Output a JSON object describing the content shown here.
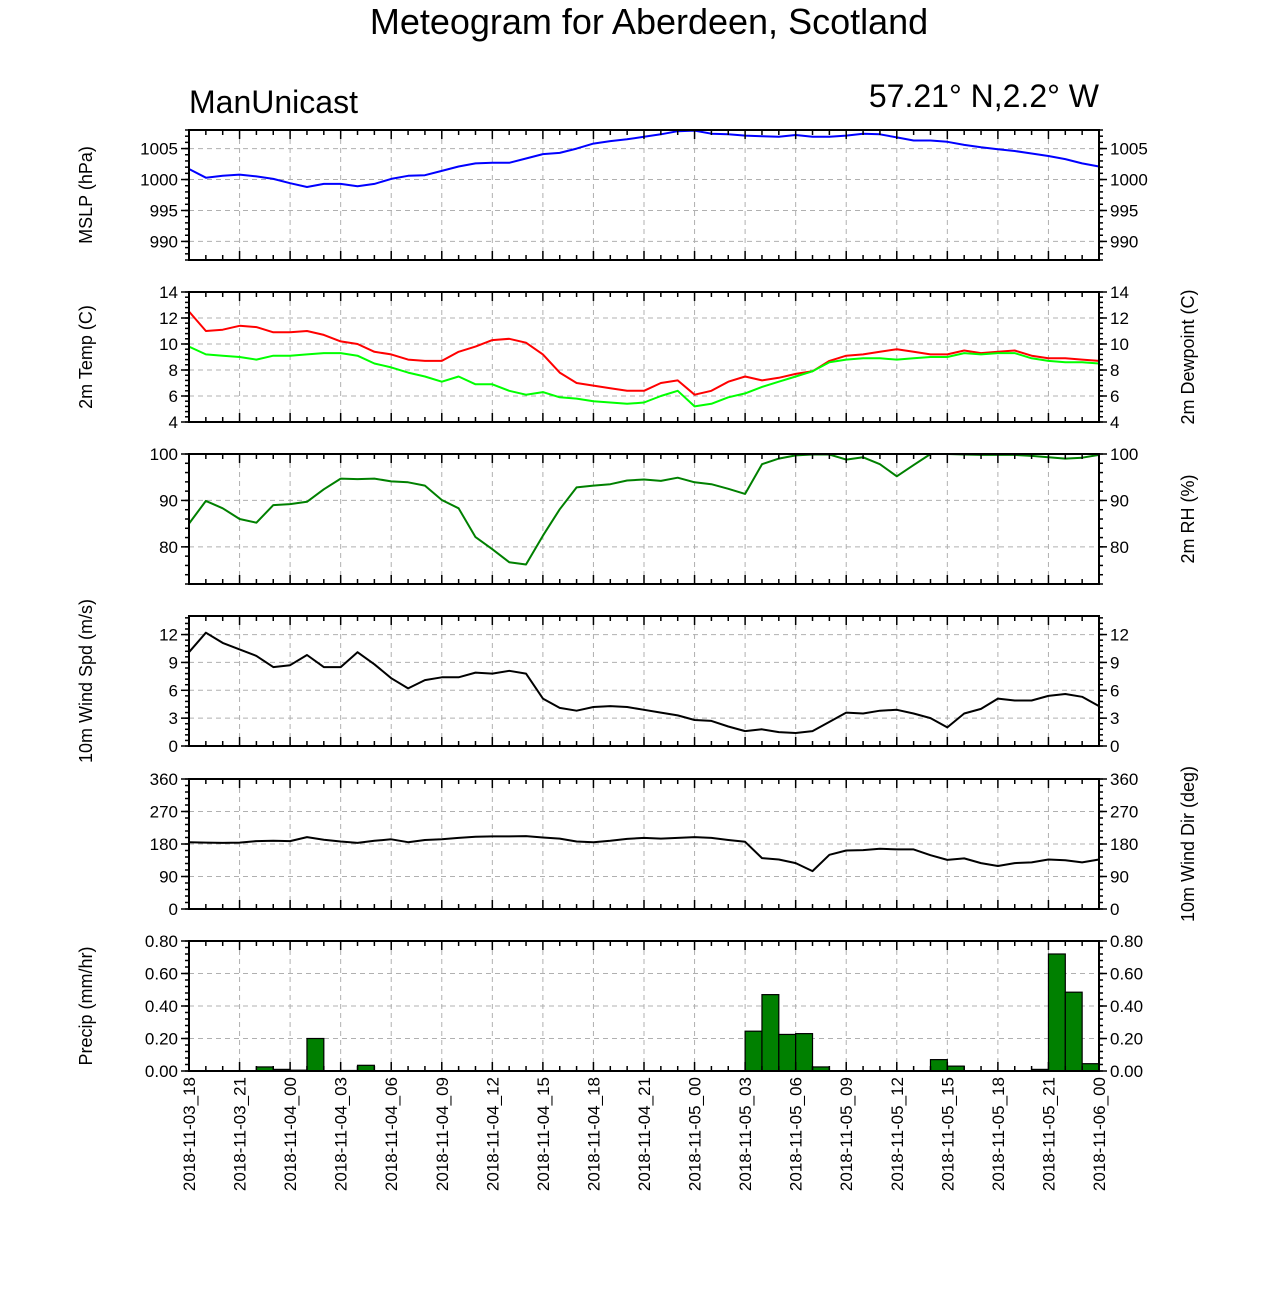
{
  "title": "Meteogram for Aberdeen, Scotland",
  "model": "ManUnicast",
  "location": "57.21° N,2.2° W",
  "time_labels": [
    "2018-11-03_18",
    "2018-11-03_21",
    "2018-11-04_00",
    "2018-11-04_03",
    "2018-11-04_06",
    "2018-11-04_09",
    "2018-11-04_12",
    "2018-11-04_15",
    "2018-11-04_18",
    "2018-11-04_21",
    "2018-11-05_00",
    "2018-11-05_03",
    "2018-11-05_06",
    "2018-11-05_09",
    "2018-11-05_12",
    "2018-11-05_15",
    "2018-11-05_18",
    "2018-11-05_21",
    "2018-11-06_00"
  ],
  "chart_data": [
    {
      "type": "line",
      "x_hours": [
        0,
        1,
        2,
        3,
        4,
        5,
        6,
        7,
        8,
        9,
        10,
        11,
        12,
        13,
        14,
        15,
        16,
        17,
        18,
        19,
        20,
        21,
        22,
        23,
        24,
        25,
        26,
        27,
        28,
        29,
        30,
        31,
        32,
        33,
        34,
        35,
        36,
        37,
        38,
        39,
        40,
        41,
        42,
        43,
        44,
        45,
        46,
        47,
        48,
        49,
        50,
        51,
        52,
        53,
        54
      ],
      "ylabel": "MSLP (hPa)",
      "ylim": [
        987,
        1008
      ],
      "yticks": [
        990,
        995,
        1000,
        1005
      ],
      "series": [
        {
          "color": "#0000ff",
          "values": [
            1001.7,
            1000.3,
            1000.6,
            1000.8,
            1000.5,
            1000.1,
            999.4,
            998.8,
            999.3,
            999.3,
            998.9,
            999.3,
            1000.1,
            1000.6,
            1000.7,
            1001.4,
            1002.1,
            1002.6,
            1002.7,
            1002.7,
            1003.4,
            1004.1,
            1004.3,
            1005.0,
            1005.8,
            1006.2,
            1006.5,
            1006.9,
            1007.3,
            1007.8,
            1007.9,
            1007.4,
            1007.3,
            1007.1,
            1007.0,
            1006.9,
            1007.2,
            1006.9,
            1006.9,
            1007.1,
            1007.4,
            1007.3,
            1006.8,
            1006.3,
            1006.3,
            1006.1,
            1005.6,
            1005.2,
            1004.9,
            1004.6,
            1004.2,
            1003.8,
            1003.3,
            1002.6,
            1002.1
          ]
        }
      ]
    },
    {
      "type": "line",
      "x_hours": [
        0,
        1,
        2,
        3,
        4,
        5,
        6,
        7,
        8,
        9,
        10,
        11,
        12,
        13,
        14,
        15,
        16,
        17,
        18,
        19,
        20,
        21,
        22,
        23,
        24,
        25,
        26,
        27,
        28,
        29,
        30,
        31,
        32,
        33,
        34,
        35,
        36,
        37,
        38,
        39,
        40,
        41,
        42,
        43,
        44,
        45,
        46,
        47,
        48,
        49,
        50,
        51,
        52,
        53,
        54
      ],
      "ylabel": "2m Temp (C)",
      "ylabel_right": "2m Dewpoint (C)",
      "ylim": [
        4,
        14
      ],
      "yticks": [
        4,
        6,
        8,
        10,
        12,
        14
      ],
      "series": [
        {
          "color": "#ff0000",
          "values": [
            12.5,
            11.0,
            11.1,
            11.4,
            11.3,
            10.9,
            10.9,
            11.0,
            10.7,
            10.2,
            10.0,
            9.4,
            9.2,
            8.8,
            8.7,
            8.7,
            9.4,
            9.8,
            10.3,
            10.4,
            10.1,
            9.2,
            7.8,
            7.0,
            6.8,
            6.6,
            6.4,
            6.4,
            7.0,
            7.2,
            6.1,
            6.4,
            7.1,
            7.5,
            7.2,
            7.4,
            7.7,
            7.9,
            8.7,
            9.1,
            9.2,
            9.4,
            9.6,
            9.4,
            9.2,
            9.2,
            9.5,
            9.3,
            9.4,
            9.5,
            9.1,
            8.9,
            8.9,
            8.8,
            8.7
          ]
        },
        {
          "color": "#00ff00",
          "values": [
            9.8,
            9.2,
            9.1,
            9.0,
            8.8,
            9.1,
            9.1,
            9.2,
            9.3,
            9.3,
            9.1,
            8.5,
            8.2,
            7.8,
            7.5,
            7.1,
            7.5,
            6.9,
            6.9,
            6.4,
            6.1,
            6.3,
            5.9,
            5.8,
            5.6,
            5.5,
            5.4,
            5.5,
            6.0,
            6.4,
            5.2,
            5.4,
            5.9,
            6.2,
            6.7,
            7.1,
            7.5,
            7.9,
            8.6,
            8.8,
            8.9,
            8.9,
            8.8,
            8.9,
            9.0,
            9.0,
            9.3,
            9.2,
            9.3,
            9.3,
            8.9,
            8.7,
            8.6,
            8.6,
            8.5
          ]
        }
      ]
    },
    {
      "type": "line",
      "x_hours": [
        0,
        1,
        2,
        3,
        4,
        5,
        6,
        7,
        8,
        9,
        10,
        11,
        12,
        13,
        14,
        15,
        16,
        17,
        18,
        19,
        20,
        21,
        22,
        23,
        24,
        25,
        26,
        27,
        28,
        29,
        30,
        31,
        32,
        33,
        34,
        35,
        36,
        37,
        38,
        39,
        40,
        41,
        42,
        43,
        44,
        45,
        46,
        47,
        48,
        49,
        50,
        51,
        52,
        53,
        54
      ],
      "ylabel_right": "2m RH (%)",
      "ylim": [
        72,
        100
      ],
      "yticks": [
        80,
        90,
        100
      ],
      "series": [
        {
          "color": "#008000",
          "values": [
            85.0,
            89.9,
            88.3,
            86.0,
            85.2,
            89.0,
            89.2,
            89.7,
            92.4,
            94.7,
            94.6,
            94.7,
            94.1,
            93.9,
            93.2,
            90.1,
            88.3,
            82.1,
            79.5,
            76.7,
            76.2,
            82.4,
            88.1,
            92.8,
            93.2,
            93.5,
            94.3,
            94.5,
            94.2,
            94.9,
            93.9,
            93.5,
            92.5,
            91.4,
            97.8,
            99.0,
            99.7,
            99.9,
            99.9,
            98.8,
            99.3,
            97.8,
            95.2,
            97.6,
            100.0,
            100.0,
            99.9,
            99.8,
            99.8,
            99.8,
            99.6,
            99.3,
            99.0,
            99.2,
            99.8
          ]
        }
      ]
    },
    {
      "type": "line",
      "x_hours": [
        0,
        1,
        2,
        3,
        4,
        5,
        6,
        7,
        8,
        9,
        10,
        11,
        12,
        13,
        14,
        15,
        16,
        17,
        18,
        19,
        20,
        21,
        22,
        23,
        24,
        25,
        26,
        27,
        28,
        29,
        30,
        31,
        32,
        33,
        34,
        35,
        36,
        37,
        38,
        39,
        40,
        41,
        42,
        43,
        44,
        45,
        46,
        47,
        48,
        49,
        50,
        51,
        52,
        53,
        54
      ],
      "ylabel": "10m Wind Spd (m/s)",
      "ylim": [
        0,
        14
      ],
      "yticks": [
        0,
        3,
        6,
        9,
        12
      ],
      "series": [
        {
          "color": "#000000",
          "values": [
            10.1,
            12.2,
            11.1,
            10.4,
            9.7,
            8.5,
            8.7,
            9.8,
            8.5,
            8.5,
            10.1,
            8.8,
            7.3,
            6.2,
            7.1,
            7.4,
            7.4,
            7.9,
            7.8,
            8.1,
            7.8,
            5.1,
            4.1,
            3.8,
            4.2,
            4.3,
            4.2,
            3.9,
            3.6,
            3.3,
            2.8,
            2.7,
            2.1,
            1.6,
            1.8,
            1.5,
            1.4,
            1.6,
            2.6,
            3.6,
            3.5,
            3.8,
            3.9,
            3.5,
            3.0,
            2.0,
            3.5,
            4.0,
            5.1,
            4.9,
            4.9,
            5.4,
            5.6,
            5.3,
            4.3
          ]
        }
      ]
    },
    {
      "type": "line",
      "x_hours": [
        0,
        1,
        2,
        3,
        4,
        5,
        6,
        7,
        8,
        9,
        10,
        11,
        12,
        13,
        14,
        15,
        16,
        17,
        18,
        19,
        20,
        21,
        22,
        23,
        24,
        25,
        26,
        27,
        28,
        29,
        30,
        31,
        32,
        33,
        34,
        35,
        36,
        37,
        38,
        39,
        40,
        41,
        42,
        43,
        44,
        45,
        46,
        47,
        48,
        49,
        50,
        51,
        52,
        53,
        54
      ],
      "ylabel_right": "10m Wind Dir (deg)",
      "ylim": [
        0,
        360
      ],
      "yticks": [
        0,
        90,
        180,
        270,
        360
      ],
      "series": [
        {
          "color": "#000000",
          "values": [
            185,
            184,
            183,
            184,
            188,
            189,
            188,
            199,
            192,
            187,
            183,
            189,
            193,
            185,
            191,
            193,
            197,
            200,
            201,
            201,
            202,
            198,
            195,
            187,
            185,
            189,
            194,
            197,
            195,
            197,
            199,
            197,
            191,
            186,
            141,
            137,
            127,
            105,
            150,
            162,
            163,
            167,
            165,
            165,
            149,
            136,
            140,
            127,
            119,
            127,
            129,
            137,
            135,
            129,
            137
          ]
        }
      ]
    },
    {
      "type": "bar",
      "x_hours": [
        0,
        1,
        2,
        3,
        4,
        5,
        6,
        7,
        8,
        9,
        10,
        11,
        12,
        13,
        14,
        15,
        16,
        17,
        18,
        19,
        20,
        21,
        22,
        23,
        24,
        25,
        26,
        27,
        28,
        29,
        30,
        31,
        32,
        33,
        34,
        35,
        36,
        37,
        38,
        39,
        40,
        41,
        42,
        43,
        44,
        45,
        46,
        47,
        48,
        49,
        50,
        51,
        52,
        53
      ],
      "ylabel": "Precip (mm/hr)",
      "ylim": [
        0,
        0.8
      ],
      "yticks": [
        0.0,
        0.2,
        0.4,
        0.6,
        0.8
      ],
      "ytick_labels": [
        "0.00",
        "0.20",
        "0.40",
        "0.60",
        "0.80"
      ],
      "series": [
        {
          "color": "#008000",
          "values": [
            0,
            0,
            0,
            0,
            0.025,
            0.01,
            0.005,
            0.2,
            0,
            0.003,
            0.035,
            0,
            0,
            0,
            0,
            0,
            0,
            0,
            0,
            0,
            0,
            0,
            0,
            0,
            0,
            0,
            0,
            0,
            0,
            0,
            0,
            0,
            0,
            0.245,
            0.47,
            0.225,
            0.23,
            0.025,
            0,
            0,
            0,
            0,
            0,
            0,
            0.07,
            0.03,
            0,
            0,
            0,
            0,
            0.01,
            0.72,
            0.485,
            0.045
          ]
        }
      ]
    }
  ]
}
